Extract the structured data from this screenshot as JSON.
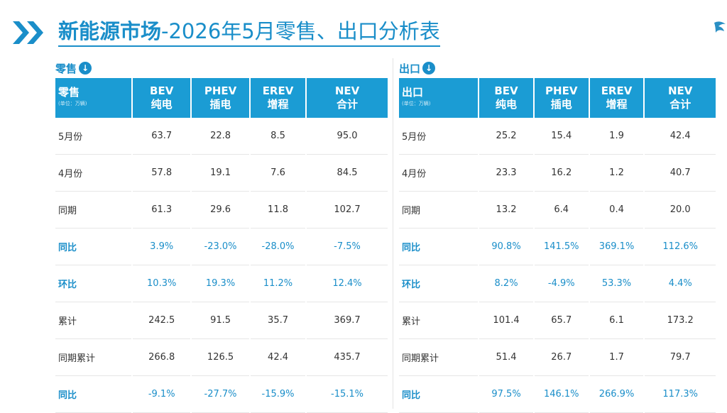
{
  "header": {
    "title_part1": "新能源市场",
    "title_part2": "-2026年5月零售、出口分析表",
    "accent_color": "#1a8ec9",
    "header_color": "#1b9cd4"
  },
  "retail": {
    "section_label": "零售",
    "columns": [
      {
        "main": "零售",
        "unit": "(单位：万辆)"
      },
      {
        "main": "BEV",
        "sub": "纯电"
      },
      {
        "main": "PHEV",
        "sub": "插电"
      },
      {
        "main": "EREV",
        "sub": "增程"
      },
      {
        "main": "NEV",
        "sub": "合计"
      }
    ],
    "rows": [
      {
        "label": "5月份",
        "values": [
          "63.7",
          "22.8",
          "8.5",
          "95.0"
        ]
      },
      {
        "label": "4月份",
        "values": [
          "57.8",
          "19.1",
          "7.6",
          "84.5"
        ]
      },
      {
        "label": "同期",
        "values": [
          "61.3",
          "29.6",
          "11.8",
          "102.7"
        ]
      },
      {
        "label": "同比",
        "values": [
          "3.9%",
          "-23.0%",
          "-28.0%",
          "-7.5%"
        ]
      },
      {
        "label": "环比",
        "values": [
          "10.3%",
          "19.3%",
          "11.2%",
          "12.4%"
        ]
      },
      {
        "label": "累计",
        "values": [
          "242.5",
          "91.5",
          "35.7",
          "369.7"
        ]
      },
      {
        "label": "同期累计",
        "values": [
          "266.8",
          "126.5",
          "42.4",
          "435.7"
        ]
      },
      {
        "label": "同比",
        "values": [
          "-9.1%",
          "-27.7%",
          "-15.9%",
          "-15.1%"
        ]
      }
    ]
  },
  "export": {
    "section_label": "出口",
    "columns": [
      {
        "main": "出口",
        "unit": "(单位：万辆)"
      },
      {
        "main": "BEV",
        "sub": "纯电"
      },
      {
        "main": "PHEV",
        "sub": "插电"
      },
      {
        "main": "EREV",
        "sub": "增程"
      },
      {
        "main": "NEV",
        "sub": "合计"
      }
    ],
    "rows": [
      {
        "label": "5月份",
        "values": [
          "25.2",
          "15.4",
          "1.9",
          "42.4"
        ]
      },
      {
        "label": "4月份",
        "values": [
          "23.3",
          "16.2",
          "1.2",
          "40.7"
        ]
      },
      {
        "label": "同期",
        "values": [
          "13.2",
          "6.4",
          "0.4",
          "20.0"
        ]
      },
      {
        "label": "同比",
        "values": [
          "90.8%",
          "141.5%",
          "369.1%",
          "112.6%"
        ]
      },
      {
        "label": "环比",
        "values": [
          "8.2%",
          "-4.9%",
          "53.3%",
          "4.4%"
        ]
      },
      {
        "label": "累计",
        "values": [
          "101.4",
          "65.7",
          "6.1",
          "173.2"
        ]
      },
      {
        "label": "同期累计",
        "values": [
          "51.4",
          "26.7",
          "1.7",
          "79.7"
        ]
      },
      {
        "label": "同比",
        "values": [
          "97.5%",
          "146.1%",
          "266.9%",
          "117.3%"
        ]
      }
    ]
  }
}
